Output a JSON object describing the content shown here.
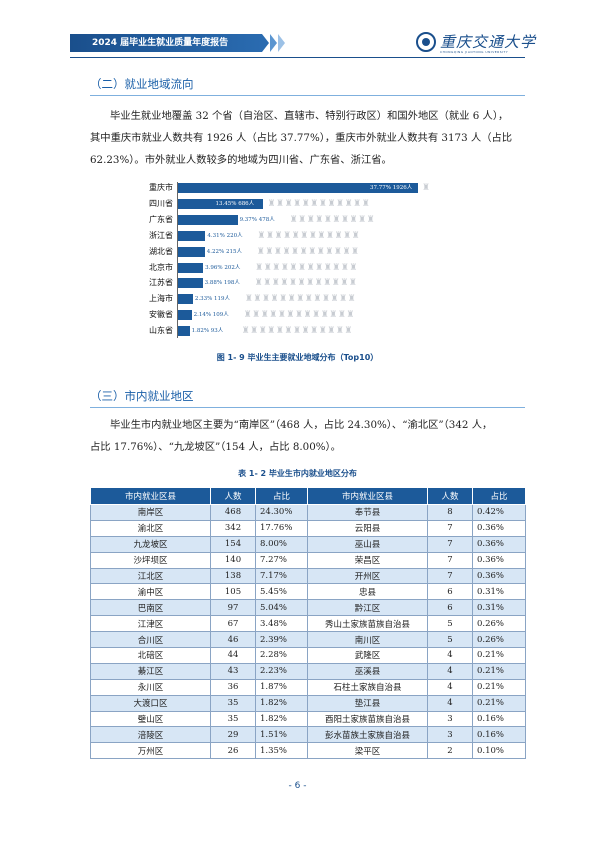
{
  "header": {
    "title": "2024 届毕业生就业质量年度报告",
    "logo_name": "重庆交通大学",
    "logo_en": "CHONGQING JIAOTONG UNIVERSITY"
  },
  "section1": {
    "heading": "（二）就业地域流向",
    "lines": [
      "毕业生就业地覆盖 32 个省（自治区、直辖市、特别行政区）和国外地区（就业 6 人），",
      "其中重庆市就业人数共有 1926 人（占比 37.77%），重庆市外就业人数共有 3173 人（占比",
      "62.23%）。市外就业人数较多的地域为四川省、广东省、浙江省。"
    ]
  },
  "chart_data": {
    "type": "bar",
    "orientation": "horizontal",
    "categories": [
      "重庆市",
      "四川省",
      "广东省",
      "浙江省",
      "湖北省",
      "北京市",
      "江苏省",
      "上海市",
      "安徽省",
      "山东省"
    ],
    "values": [
      1926,
      686,
      478,
      220,
      215,
      202,
      198,
      119,
      109,
      93
    ],
    "percents": [
      37.77,
      13.45,
      9.37,
      4.31,
      4.22,
      3.96,
      3.88,
      2.33,
      2.14,
      1.82
    ],
    "labels": [
      "37.77% 1926人",
      "13.45% 686人",
      "9.37% 478人",
      "4.31% 220人",
      "4.22% 215人",
      "3.96% 202人",
      "3.88% 198人",
      "2.33% 119人",
      "2.14% 109人",
      "1.82% 93人"
    ],
    "title": "",
    "xlabel": "",
    "ylabel": "",
    "color": "#1c5a9a"
  },
  "figure_caption": "图 1- 9  毕业生主要就业地域分布（Top10）",
  "section2": {
    "heading": "（三）市内就业地区",
    "lines": [
      "毕业生市内就业地区主要为“南岸区”（468 人，占比 24.30%）、“渝北区”（342 人，",
      "占比 17.76%）、“九龙坡区”（154 人，占比 8.00%）。"
    ]
  },
  "table": {
    "caption": "表 1- 2  毕业生市内就业地区分布",
    "headers": [
      "市内就业区县",
      "人数",
      "占比",
      "市内就业区县",
      "人数",
      "占比"
    ],
    "rows": [
      [
        "南岸区",
        "468",
        "24.30%",
        "奉节县",
        "8",
        "0.42%"
      ],
      [
        "渝北区",
        "342",
        "17.76%",
        "云阳县",
        "7",
        "0.36%"
      ],
      [
        "九龙坡区",
        "154",
        "8.00%",
        "巫山县",
        "7",
        "0.36%"
      ],
      [
        "沙坪坝区",
        "140",
        "7.27%",
        "荣昌区",
        "7",
        "0.36%"
      ],
      [
        "江北区",
        "138",
        "7.17%",
        "开州区",
        "7",
        "0.36%"
      ],
      [
        "渝中区",
        "105",
        "5.45%",
        "忠县",
        "6",
        "0.31%"
      ],
      [
        "巴南区",
        "97",
        "5.04%",
        "黔江区",
        "6",
        "0.31%"
      ],
      [
        "江津区",
        "67",
        "3.48%",
        "秀山土家族苗族自治县",
        "5",
        "0.26%"
      ],
      [
        "合川区",
        "46",
        "2.39%",
        "南川区",
        "5",
        "0.26%"
      ],
      [
        "北碚区",
        "44",
        "2.28%",
        "武隆区",
        "4",
        "0.21%"
      ],
      [
        "綦江区",
        "43",
        "2.23%",
        "巫溪县",
        "4",
        "0.21%"
      ],
      [
        "永川区",
        "36",
        "1.87%",
        "石柱土家族自治县",
        "4",
        "0.21%"
      ],
      [
        "大渡口区",
        "35",
        "1.82%",
        "垫江县",
        "4",
        "0.21%"
      ],
      [
        "璧山区",
        "35",
        "1.82%",
        "酉阳土家族苗族自治县",
        "3",
        "0.16%"
      ],
      [
        "涪陵区",
        "29",
        "1.51%",
        "彭水苗族土家族自治县",
        "3",
        "0.16%"
      ],
      [
        "万州区",
        "26",
        "1.35%",
        "梁平区",
        "2",
        "0.10%"
      ]
    ]
  },
  "page_number": "- 6 -"
}
